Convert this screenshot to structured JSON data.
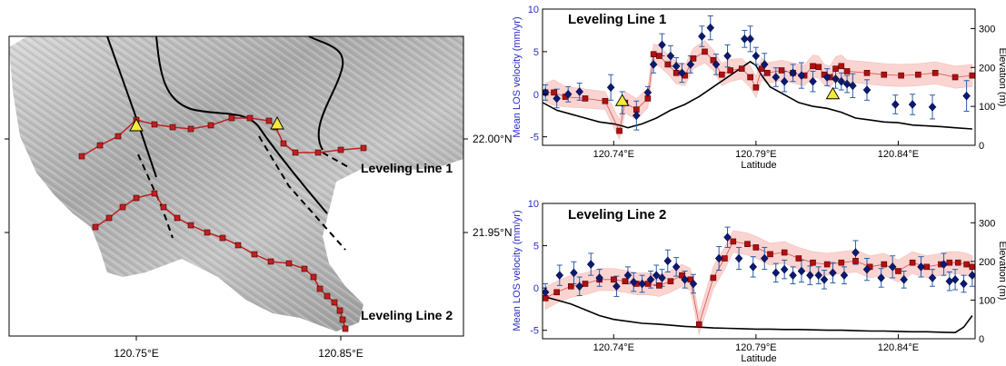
{
  "map": {
    "x_ticks": [
      "120.75°E",
      "120.85°E"
    ],
    "y_ticks": [
      "22.00°N",
      "21.95°N"
    ],
    "labels": [
      "Leveling Line 1",
      "Leveling Line 2"
    ]
  },
  "chart_data": [
    {
      "type": "scatter",
      "title": "Leveling Line 1",
      "xlabel": "Latitude",
      "ylabel": "Mean LOS velocity (mm/yr)",
      "ylabel_right": "Elevation (m)",
      "xlim": [
        120.715,
        120.867
      ],
      "ylim": [
        -6,
        10
      ],
      "ylim_right": [
        0,
        350
      ],
      "x_tick_labels": [
        "120.74°E",
        "120.79°E",
        "120.84°E"
      ],
      "y_tick_labels": [
        "-5",
        "0",
        "5",
        "10"
      ],
      "y_right_tick_labels": [
        "0",
        "100",
        "200",
        "300"
      ],
      "series": [
        {
          "kind": "insar_los",
          "x": [
            120.716,
            120.72,
            120.724,
            120.728,
            120.739,
            120.743,
            120.748,
            120.752,
            120.754,
            120.757,
            120.76,
            120.762,
            120.764,
            120.767,
            120.771,
            120.774,
            120.776,
            120.78,
            120.786,
            120.788,
            120.79,
            120.793,
            120.797,
            120.8,
            120.803,
            120.806,
            120.81,
            120.815,
            120.818,
            120.82,
            120.822,
            120.824,
            120.829,
            120.839,
            120.845,
            120.852,
            120.864
          ],
          "y": [
            0.2,
            -0.5,
            0.0,
            0.3,
            0.8,
            -1.0,
            -2.5,
            0.2,
            3.5,
            5.8,
            4.5,
            3.3,
            2.5,
            3.5,
            6.8,
            7.8,
            3.5,
            4.5,
            6.5,
            6.5,
            4.5,
            3.5,
            2.0,
            1.5,
            2.5,
            2.2,
            1.5,
            2.0,
            1.8,
            1.5,
            1.2,
            1.0,
            0.5,
            -1.2,
            -1.2,
            -1.5,
            -0.2
          ],
          "err": [
            0.9,
            1.1,
            0.9,
            1.0,
            1.5,
            1.3,
            1.7,
            0.7,
            1.0,
            1.3,
            1.2,
            1.0,
            1.1,
            1.0,
            1.2,
            1.4,
            1.2,
            1.3,
            1.0,
            1.5,
            1.0,
            1.3,
            1.1,
            1.2,
            1.0,
            1.5,
            1.2,
            1.0,
            1.1,
            1.0,
            1.0,
            1.4,
            1.2,
            1.1,
            1.2,
            1.4,
            1.8
          ]
        },
        {
          "kind": "leveling",
          "x": [
            120.716,
            120.719,
            120.723,
            120.73,
            120.737,
            120.742,
            120.744,
            120.748,
            120.752,
            120.754,
            120.756,
            120.759,
            120.762,
            120.765,
            120.768,
            120.772,
            120.775,
            120.778,
            120.781,
            120.785,
            120.788,
            120.79,
            120.792,
            120.794,
            120.799,
            120.803,
            120.807,
            120.81,
            120.812,
            120.814,
            120.816,
            120.818,
            120.82,
            120.822,
            120.829,
            120.835,
            120.841,
            120.847,
            120.853,
            120.86,
            120.866
          ],
          "y": [
            0.2,
            0.2,
            -0.3,
            -0.5,
            -0.8,
            -4.3,
            -1.0,
            -1.8,
            -0.5,
            4.7,
            4.5,
            3.5,
            2.5,
            2.2,
            4.2,
            5.0,
            4.0,
            2.3,
            2.8,
            3.0,
            2.0,
            0.8,
            3.0,
            2.5,
            2.8,
            2.5,
            2.2,
            3.3,
            3.2,
            2.3,
            2.0,
            3.0,
            3.3,
            2.7,
            2.5,
            2.3,
            2.2,
            2.3,
            2.5,
            2.0,
            2.2
          ],
          "band_lower": [
            -0.9,
            -1.3,
            -1.5,
            -1.6,
            -1.8,
            -5.3,
            -2.2,
            -3.0,
            -1.6,
            3.5,
            3.3,
            2.4,
            1.2,
            1.0,
            3.0,
            3.7,
            2.8,
            1.0,
            1.5,
            1.8,
            0.8,
            -0.4,
            1.7,
            1.3,
            1.6,
            1.3,
            1.0,
            2.0,
            1.9,
            1.1,
            0.8,
            1.7,
            2.0,
            1.4,
            1.2,
            1.0,
            0.9,
            1.0,
            1.2,
            0.7,
            0.9
          ],
          "band_upper": [
            1.3,
            1.7,
            0.9,
            0.6,
            0.3,
            -3.0,
            0.3,
            -0.5,
            0.7,
            5.9,
            5.7,
            4.7,
            3.8,
            3.4,
            5.4,
            6.3,
            5.2,
            3.6,
            4.1,
            4.2,
            3.3,
            2.1,
            4.3,
            3.7,
            4.0,
            3.7,
            3.4,
            4.6,
            4.5,
            3.5,
            3.3,
            4.4,
            4.6,
            4.0,
            3.8,
            3.6,
            3.5,
            3.6,
            3.8,
            3.3,
            3.5
          ]
        },
        {
          "kind": "elevation",
          "x": [
            120.715,
            120.72,
            120.725,
            120.73,
            120.735,
            120.74,
            120.743,
            120.745,
            120.75,
            120.755,
            120.76,
            120.765,
            120.77,
            120.775,
            120.78,
            120.785,
            120.788,
            120.79,
            120.792,
            120.795,
            120.8,
            120.805,
            120.81,
            120.815,
            120.82,
            120.825,
            120.83,
            120.835,
            120.84,
            120.845,
            120.85,
            120.855,
            120.86,
            120.866
          ],
          "y": [
            110,
            90,
            80,
            70,
            60,
            55,
            50,
            45,
            55,
            70,
            90,
            105,
            125,
            150,
            175,
            200,
            215,
            205,
            180,
            150,
            130,
            110,
            100,
            95,
            85,
            70,
            65,
            60,
            58,
            52,
            50,
            48,
            45,
            42
          ]
        },
        {
          "kind": "triangle_marker",
          "x": [
            120.743,
            120.817
          ],
          "y": [
            -0.8,
            0.0
          ]
        }
      ]
    },
    {
      "type": "scatter",
      "title": "Leveling Line 2",
      "xlabel": "Latitude",
      "ylabel": "Mean LOS velocity (mm/yr)",
      "ylabel_right": "Elevation (m)",
      "xlim": [
        120.715,
        120.867
      ],
      "ylim": [
        -6,
        10
      ],
      "ylim_right": [
        0,
        350
      ],
      "x_tick_labels": [
        "120.74°E",
        "120.79°E",
        "120.84°E"
      ],
      "y_tick_labels": [
        "-5",
        "0",
        "5",
        "10"
      ],
      "y_right_tick_labels": [
        "0",
        "100",
        "200",
        "300"
      ],
      "series": [
        {
          "kind": "insar_los",
          "x": [
            120.716,
            120.721,
            120.726,
            120.728,
            120.732,
            120.735,
            120.741,
            120.745,
            120.747,
            120.75,
            120.753,
            120.755,
            120.757,
            120.759,
            120.762,
            120.765,
            120.768,
            120.777,
            120.78,
            120.784,
            120.789,
            120.793,
            120.797,
            120.8,
            120.803,
            120.806,
            120.809,
            120.812,
            120.814,
            120.817,
            120.821,
            120.825,
            120.829,
            120.834,
            120.838,
            120.842,
            120.848,
            120.852,
            120.856,
            120.858,
            120.86,
            120.863,
            120.866
          ],
          "y": [
            -0.5,
            1.5,
            1.8,
            0.2,
            2.8,
            1.2,
            0.2,
            1.5,
            0.7,
            0.5,
            1.0,
            1.5,
            1.2,
            3.2,
            2.5,
            1.0,
            0.5,
            3.5,
            6.0,
            3.5,
            2.5,
            3.5,
            1.8,
            2.2,
            1.5,
            2.0,
            1.5,
            1.5,
            1.0,
            1.8,
            1.5,
            4.2,
            2.2,
            1.2,
            2.5,
            1.0,
            2.5,
            1.2,
            2.8,
            0.8,
            1.0,
            0.5,
            1.5
          ],
          "err": [
            1.0,
            1.2,
            1.3,
            1.1,
            1.3,
            1.0,
            1.2,
            1.0,
            1.1,
            1.0,
            1.0,
            1.2,
            1.0,
            1.3,
            1.1,
            1.0,
            1.1,
            1.4,
            1.2,
            1.3,
            1.2,
            1.3,
            1.1,
            1.1,
            1.0,
            1.3,
            1.1,
            1.0,
            1.1,
            1.2,
            1.0,
            1.4,
            1.3,
            1.1,
            1.3,
            1.0,
            1.2,
            1.0,
            1.3,
            1.1,
            1.2,
            1.0,
            1.3
          ]
        },
        {
          "kind": "leveling",
          "x": [
            120.716,
            120.72,
            120.725,
            120.73,
            120.735,
            120.74,
            120.744,
            120.748,
            120.752,
            120.756,
            120.76,
            120.764,
            120.767,
            120.77,
            120.775,
            120.779,
            120.782,
            120.787,
            120.79,
            120.795,
            120.8,
            120.805,
            120.81,
            120.815,
            120.82,
            120.825,
            120.83,
            120.835,
            120.84,
            120.845,
            120.85,
            120.855,
            120.858,
            120.861,
            120.864,
            120.866
          ],
          "y": [
            -1.2,
            -0.5,
            0.2,
            0.5,
            1.0,
            1.0,
            0.8,
            0.5,
            0.5,
            0.3,
            0.8,
            1.5,
            1.0,
            -4.3,
            1.2,
            3.5,
            5.5,
            5.2,
            4.8,
            4.0,
            4.2,
            3.5,
            3.0,
            2.8,
            3.0,
            3.2,
            2.5,
            2.8,
            2.0,
            3.0,
            2.5,
            2.8,
            3.0,
            3.0,
            2.8,
            2.5
          ],
          "band_lower": [
            -2.5,
            -1.8,
            -1.1,
            -0.8,
            -0.3,
            -0.3,
            -0.5,
            -0.8,
            -0.8,
            -1.0,
            -0.5,
            0.2,
            -0.3,
            -5.5,
            -0.1,
            2.2,
            4.2,
            3.9,
            3.5,
            2.7,
            2.9,
            2.2,
            1.7,
            1.5,
            1.7,
            1.9,
            1.2,
            1.5,
            0.7,
            1.7,
            1.2,
            1.5,
            1.7,
            1.7,
            1.5,
            1.2
          ],
          "band_upper": [
            0.1,
            0.8,
            1.5,
            1.8,
            2.3,
            2.3,
            2.1,
            1.8,
            1.8,
            1.6,
            2.1,
            2.8,
            2.3,
            -3.1,
            2.5,
            4.8,
            6.8,
            6.5,
            6.1,
            5.3,
            5.5,
            4.8,
            4.3,
            4.1,
            4.3,
            4.5,
            3.8,
            4.1,
            3.3,
            4.3,
            3.8,
            4.1,
            4.3,
            4.3,
            4.1,
            3.8
          ]
        },
        {
          "kind": "elevation",
          "x": [
            120.715,
            120.72,
            120.725,
            120.73,
            120.735,
            120.74,
            120.745,
            120.75,
            120.755,
            120.76,
            120.765,
            120.77,
            120.775,
            120.78,
            120.785,
            120.79,
            120.795,
            120.8,
            120.805,
            120.81,
            120.815,
            120.82,
            120.825,
            120.83,
            120.835,
            120.84,
            120.845,
            120.85,
            120.855,
            120.86,
            120.863,
            120.866
          ],
          "y": [
            110,
            100,
            90,
            75,
            60,
            50,
            45,
            40,
            38,
            35,
            32,
            30,
            28,
            27,
            26,
            25,
            25,
            24,
            24,
            23,
            22,
            22,
            21,
            20,
            20,
            19,
            18,
            18,
            17,
            16,
            30,
            60
          ]
        }
      ]
    }
  ],
  "colors": {
    "insar": "#0a1a70",
    "insar_err": "#2c5ea8",
    "leveling": "#c02020",
    "leveling_fill": "#b01010",
    "band": "#f9c6c2",
    "elevation": "#000000",
    "triangle": "#f3ea3a",
    "left_axis_label": "#2a2acc"
  }
}
